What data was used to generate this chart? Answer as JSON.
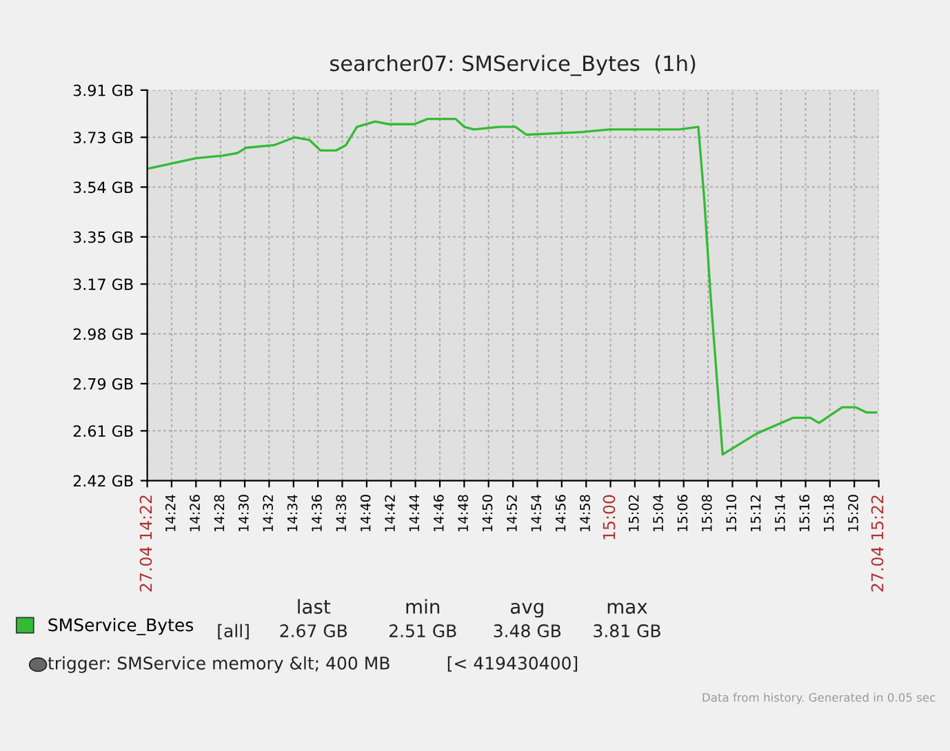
{
  "chart_data": {
    "type": "line",
    "title": "searcher07: SMService_Bytes  (1h)",
    "x": [
      14.3667,
      14.4,
      14.4333,
      14.47,
      14.49,
      14.5017,
      14.54,
      14.5683,
      14.5883,
      14.6033,
      14.625,
      14.6383,
      14.6533,
      14.6783,
      14.6967,
      14.7317,
      14.75,
      14.7883,
      14.8,
      14.8133,
      14.8483,
      14.8533,
      14.87,
      14.885,
      14.9617,
      14.9983,
      15.0933,
      15.12,
      15.1283,
      15.1367,
      15.1533,
      15.2,
      15.25,
      15.2733,
      15.285,
      15.3167,
      15.335,
      15.35,
      15.3633
    ],
    "series": [
      {
        "name": "SMService_Bytes",
        "color": "#33bb33",
        "values": [
          3.61,
          3.63,
          3.65,
          3.66,
          3.67,
          3.69,
          3.7,
          3.73,
          3.72,
          3.68,
          3.68,
          3.7,
          3.77,
          3.79,
          3.78,
          3.78,
          3.8,
          3.8,
          3.77,
          3.76,
          3.77,
          3.77,
          3.77,
          3.74,
          3.75,
          3.76,
          3.76,
          3.77,
          3.49,
          3.13,
          2.52,
          2.6,
          2.66,
          2.66,
          2.64,
          2.7,
          2.7,
          2.68,
          2.68
        ]
      }
    ],
    "xlim": [
      14.3667,
      15.3667
    ],
    "xticks": [
      {
        "value": 14.3667,
        "label": "27.04 14:22"
      },
      {
        "value": 14.4,
        "label": "14:24"
      },
      {
        "value": 14.4333,
        "label": "14:26"
      },
      {
        "value": 14.4667,
        "label": "14:28"
      },
      {
        "value": 14.5,
        "label": "14:30"
      },
      {
        "value": 14.5333,
        "label": "14:32"
      },
      {
        "value": 14.5667,
        "label": "14:34"
      },
      {
        "value": 14.6,
        "label": "14:36"
      },
      {
        "value": 14.6333,
        "label": "14:38"
      },
      {
        "value": 14.6667,
        "label": "14:40"
      },
      {
        "value": 14.7,
        "label": "14:42"
      },
      {
        "value": 14.7333,
        "label": "14:44"
      },
      {
        "value": 14.7667,
        "label": "14:46"
      },
      {
        "value": 14.8,
        "label": "14:48"
      },
      {
        "value": 14.8333,
        "label": "14:50"
      },
      {
        "value": 14.8667,
        "label": "14:52"
      },
      {
        "value": 14.9,
        "label": "14:54"
      },
      {
        "value": 14.9333,
        "label": "14:56"
      },
      {
        "value": 14.9667,
        "label": "14:58"
      },
      {
        "value": 15,
        "label": "15:00"
      },
      {
        "value": 15.0333,
        "label": "15:02"
      },
      {
        "value": 15.0667,
        "label": "15:04"
      },
      {
        "value": 15.1,
        "label": "15:06"
      },
      {
        "value": 15.1333,
        "label": "15:08"
      },
      {
        "value": 15.1667,
        "label": "15:10"
      },
      {
        "value": 15.2,
        "label": "15:12"
      },
      {
        "value": 15.2333,
        "label": "15:14"
      },
      {
        "value": 15.2667,
        "label": "15:16"
      },
      {
        "value": 15.3,
        "label": "15:18"
      },
      {
        "value": 15.3333,
        "label": "15:20"
      },
      {
        "value": 15.3667,
        "label": "27.04 15:22"
      }
    ],
    "ylim": [
      2.42,
      3.91
    ],
    "yticks": [
      {
        "value": 2.42,
        "label": "2.42 GB"
      },
      {
        "value": 2.61,
        "label": "2.61 GB"
      },
      {
        "value": 2.79,
        "label": "2.79 GB"
      },
      {
        "value": 2.98,
        "label": "2.98 GB"
      },
      {
        "value": 3.17,
        "label": "3.17 GB"
      },
      {
        "value": 3.35,
        "label": "3.35 GB"
      },
      {
        "value": 3.54,
        "label": "3.54 GB"
      },
      {
        "value": 3.73,
        "label": "3.73 GB"
      },
      {
        "value": 3.91,
        "label": "3.91 GB"
      }
    ],
    "grid": true,
    "legend": "bottom left",
    "annotations": [
      "[all]",
      "last",
      "min",
      "avg",
      "max",
      "2.67 GB",
      "2.51 GB",
      "3.48 GB",
      "3.81 GB",
      "trigger: SMService memory &lt; 400 MB",
      "[< 419430400]",
      "Data from history. Generated in 0.05 sec"
    ]
  }
}
